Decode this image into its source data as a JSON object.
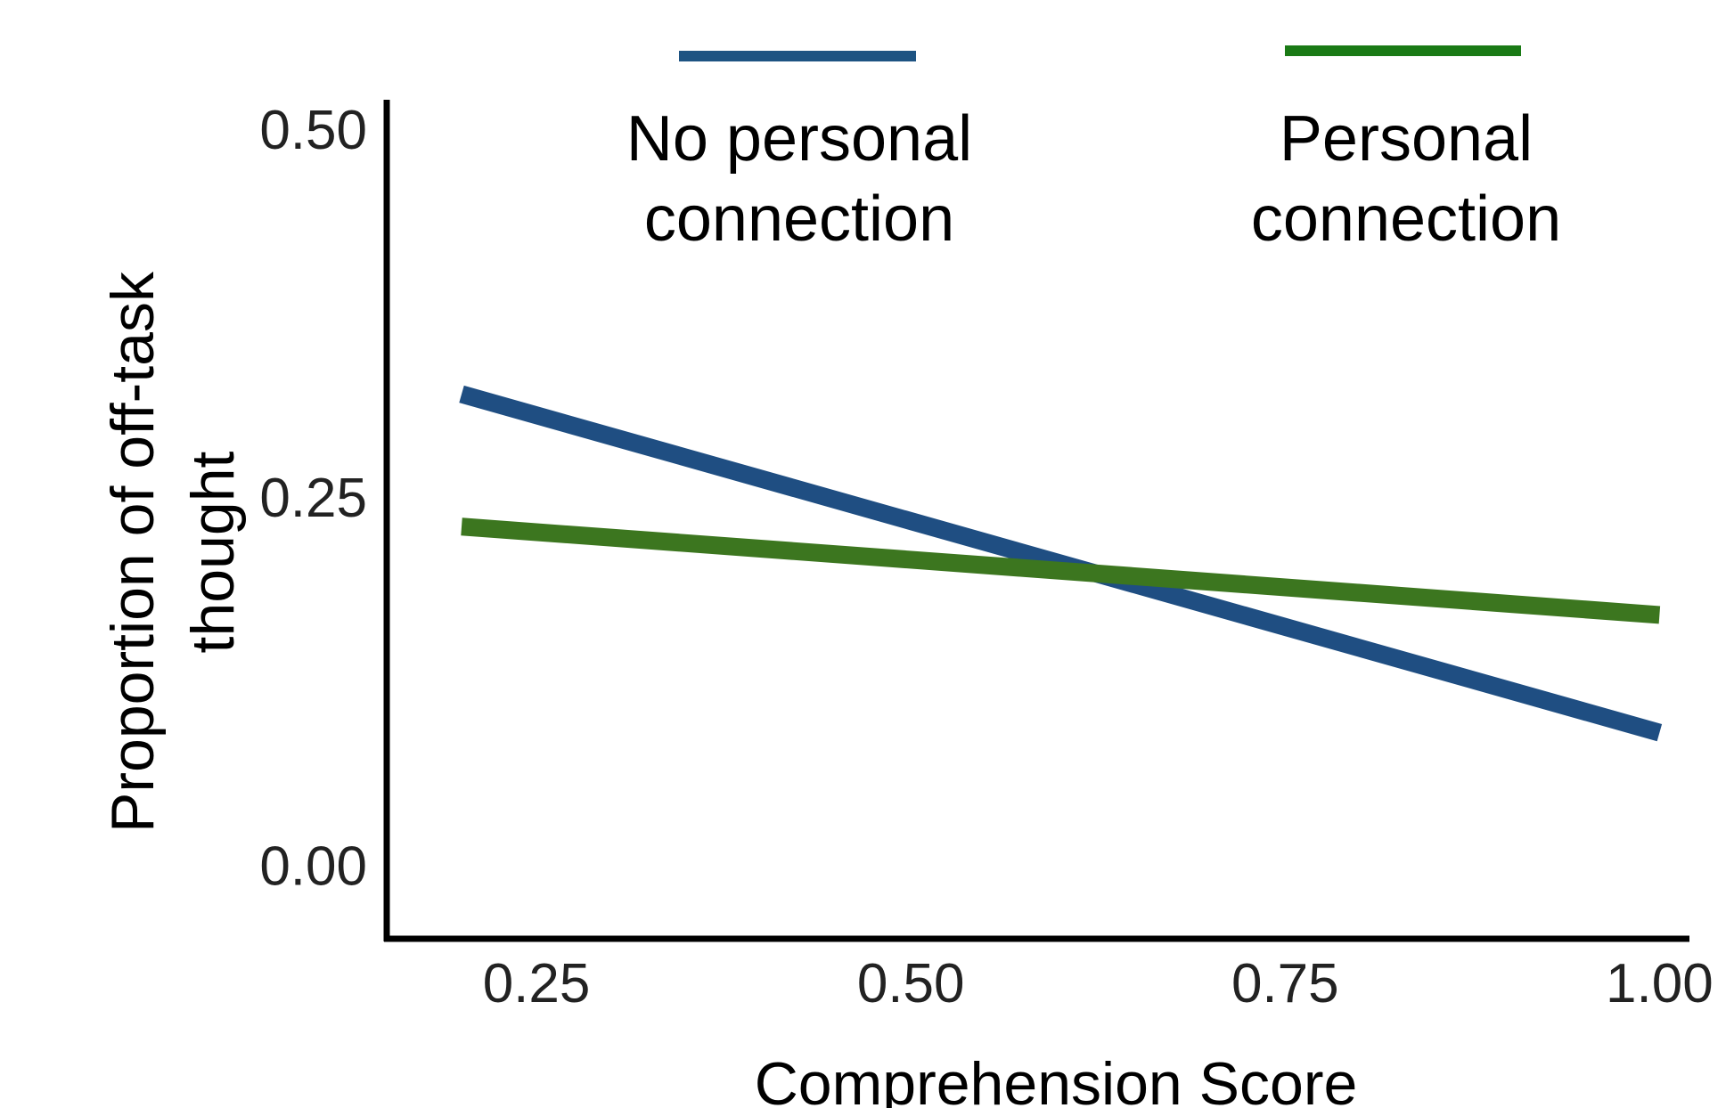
{
  "chart_data": {
    "type": "line",
    "title": "",
    "xlabel": "Comprehension Score",
    "ylabel_lines": [
      "Proportion of off-task",
      "thought"
    ],
    "xlim": [
      0.15,
      1.02
    ],
    "ylim": [
      -0.05,
      0.52
    ],
    "x_ticks": [
      {
        "value": 0.25,
        "label": "0.25"
      },
      {
        "value": 0.5,
        "label": "0.50"
      },
      {
        "value": 0.75,
        "label": "0.75"
      },
      {
        "value": 1.0,
        "label": "1.00"
      }
    ],
    "y_ticks": [
      {
        "value": 0.0,
        "label": "0.00"
      },
      {
        "value": 0.25,
        "label": "0.25"
      },
      {
        "value": 0.5,
        "label": "0.50"
      }
    ],
    "grid": false,
    "legend_position": "top",
    "series": [
      {
        "name_lines": [
          "No personal",
          "connection"
        ],
        "color": "#1f4e82",
        "x": [
          0.2,
          1.0
        ],
        "y": [
          0.32,
          0.09
        ]
      },
      {
        "name_lines": [
          "Personal",
          "connection"
        ],
        "color": "#3c761f",
        "x": [
          0.2,
          1.0
        ],
        "y": [
          0.23,
          0.17
        ]
      }
    ],
    "legend_swatch_colors": [
      "#1d5382",
      "#1a7a15"
    ]
  }
}
